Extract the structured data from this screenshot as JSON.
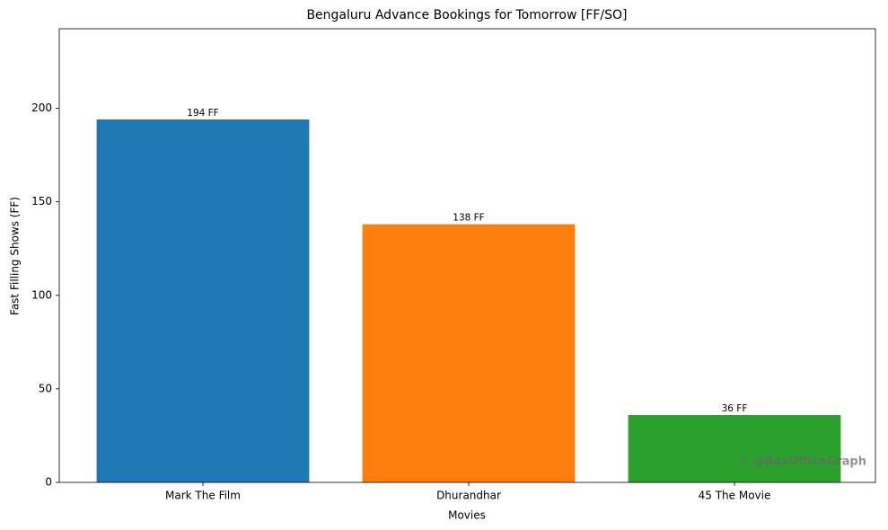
{
  "chart_data": {
    "type": "bar",
    "title": "Bengaluru Advance Bookings for Tomorrow [FF/SO]",
    "x_label": "Movies",
    "y_label": "Fast Filling Shows (FF)",
    "categories": [
      "Mark The Film",
      "Dhurandhar",
      "45 The Movie"
    ],
    "values": [
      194,
      138,
      36
    ],
    "value_labels": [
      "194 FF",
      "138 FF",
      "36 FF"
    ],
    "colors": [
      "#1f77b4",
      "#ff7f0e",
      "#2ca02c"
    ],
    "ylim": [
      0,
      242.5
    ],
    "yticks": [
      0,
      50,
      100,
      150,
      200
    ],
    "grid": false,
    "watermark": "𝕏 @BoxOfficeGraph"
  }
}
